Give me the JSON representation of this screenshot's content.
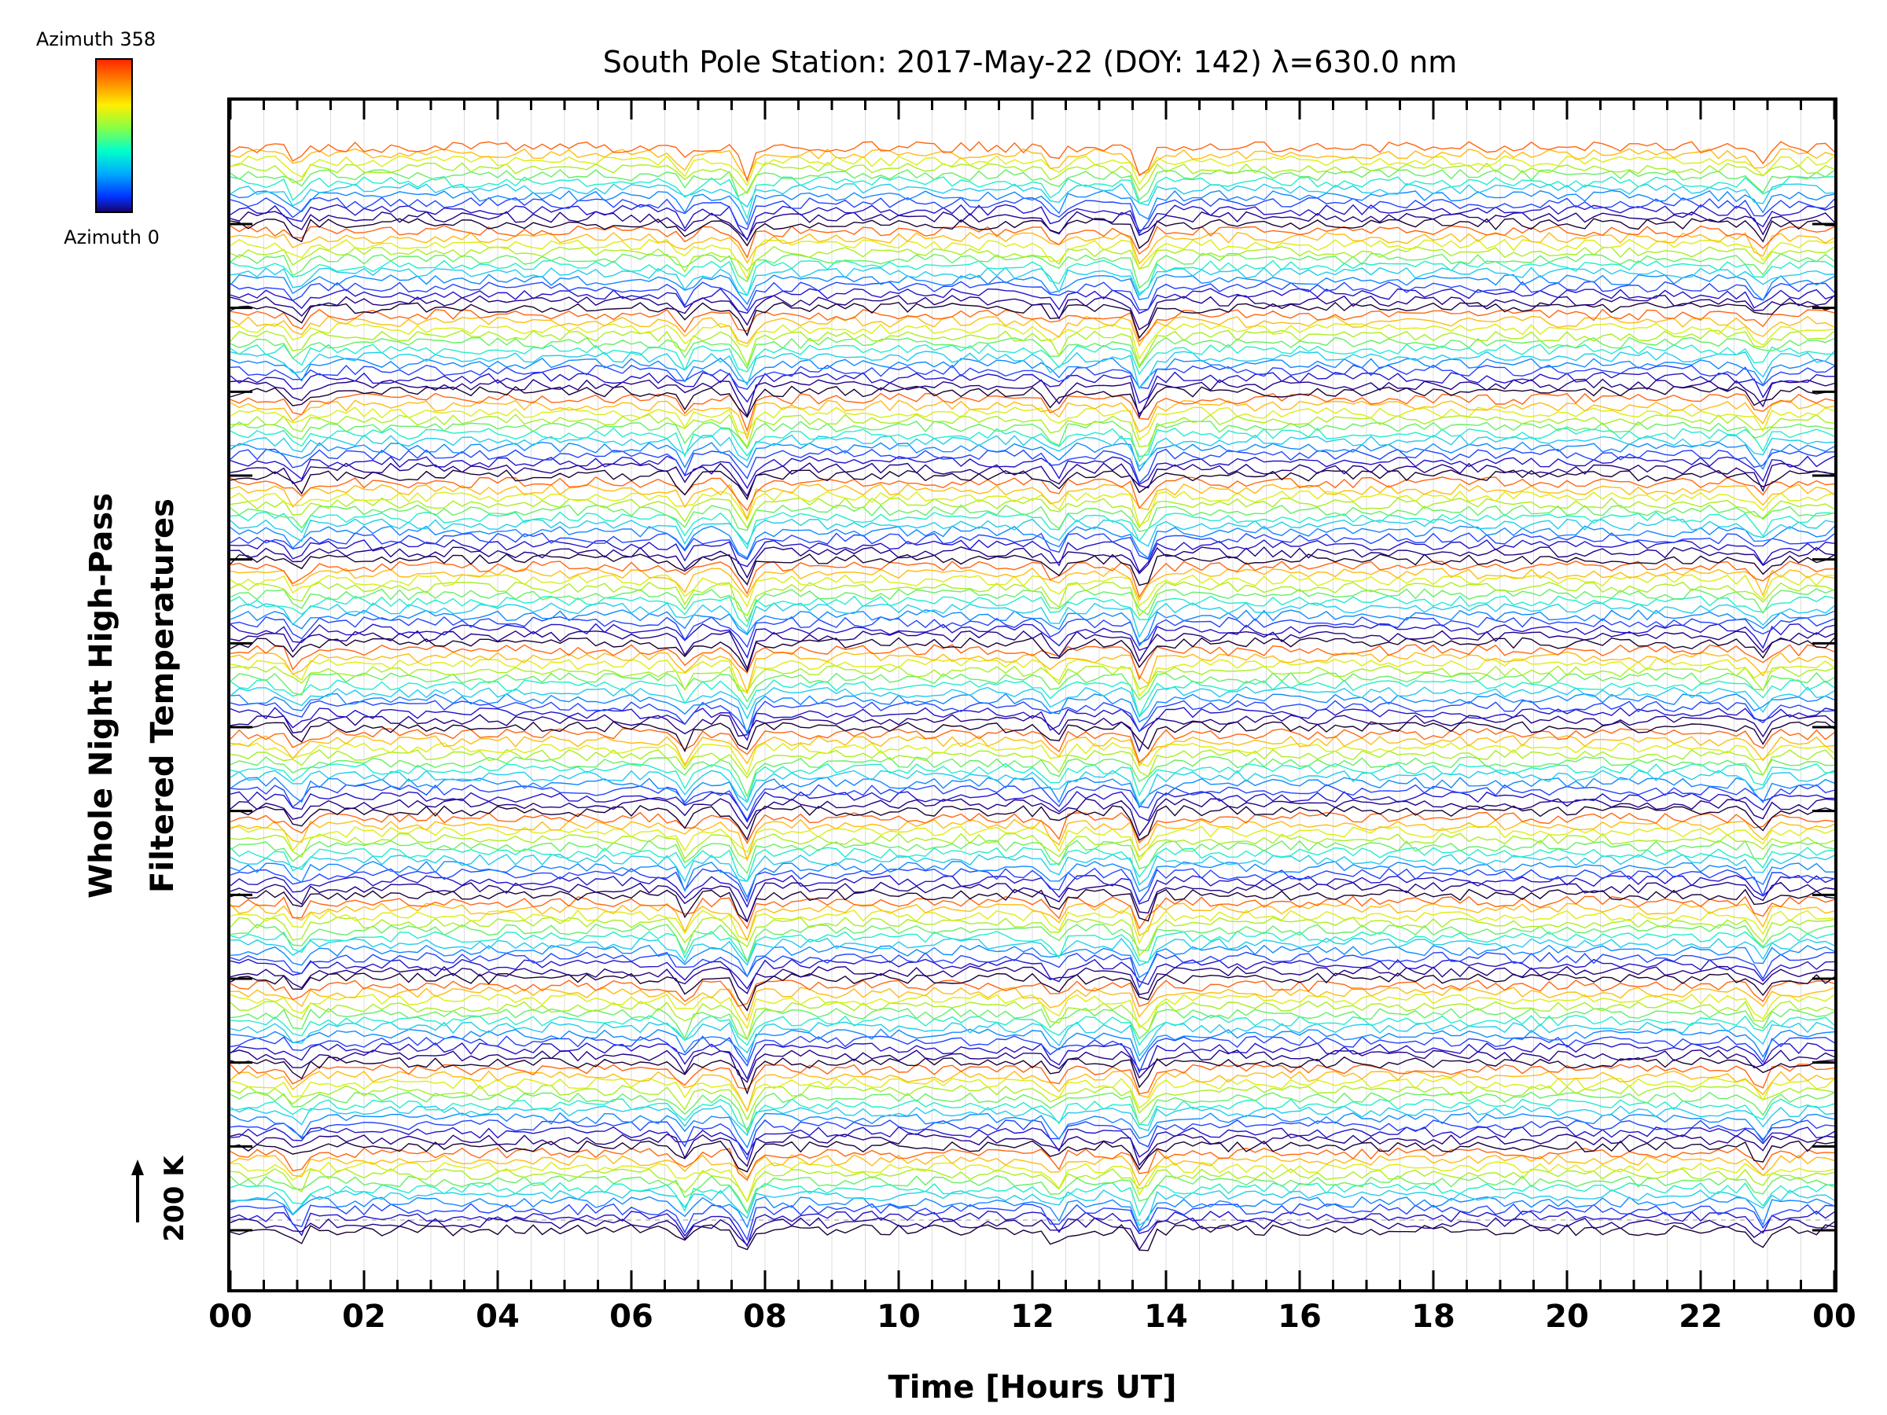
{
  "chart_data": {
    "type": "line",
    "title": "South Pole Station: 2017-May-22 (DOY: 142) λ=630.0 nm",
    "xlabel": "Time [Hours UT]",
    "ylabel_line1": "Whole Night High-Pass",
    "ylabel_line2": "Filtered Temperatures",
    "x_ticks": [
      "00",
      "02",
      "04",
      "06",
      "08",
      "10",
      "12",
      "14",
      "16",
      "18",
      "20",
      "22",
      "00"
    ],
    "xlim": [
      0,
      24
    ],
    "scale_bar_label": "200 K",
    "colorbar": {
      "top_label": "Azimuth 358",
      "bottom_label": "Azimuth 0",
      "colors": [
        "#ff2200",
        "#ff8800",
        "#ffee00",
        "#88ff44",
        "#00ffcc",
        "#00aaff",
        "#0033ff",
        "#1a0066"
      ]
    },
    "num_groups": 13,
    "lines_per_group": 12,
    "dip_times_hours": [
      1.0,
      6.8,
      7.7,
      12.35,
      13.65,
      22.9
    ],
    "grid": true
  }
}
